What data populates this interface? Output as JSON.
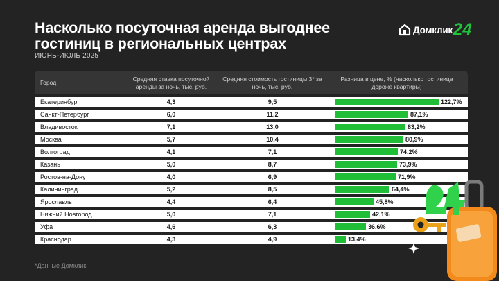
{
  "title": "Насколько посуточная аренда выгоднее гостиниц в региональных центрах",
  "subtitle": "ИЮНЬ-ИЮЛЬ 2025",
  "logo": {
    "text": "Домклик",
    "badge": "24",
    "brand_color": "#21c33a"
  },
  "footnote": "*Данные Домклик",
  "table": {
    "headers": {
      "city": "Город",
      "rent": "Средняя ставка посуточной аренды за ночь, тыс. руб.",
      "hotel": "Средняя стоимость гостиницы 3* за ночь, тыс. руб.",
      "diff": "Разница в цене, % (насколько гостиница дороже квартиры)"
    }
  },
  "chart_data": {
    "type": "table",
    "title": "Насколько посуточная аренда выгоднее гостиниц в региональных центрах",
    "subtitle": "ИЮНЬ-ИЮЛЬ 2025",
    "columns": [
      "Город",
      "Средняя ставка посуточной аренды за ночь, тыс. руб.",
      "Средняя стоимость гостиницы 3* за ночь, тыс. руб.",
      "Разница в цене, % (насколько гостиница дороже квартиры)"
    ],
    "bar_max": 122.7,
    "rows": [
      {
        "city": "Екатеринбург",
        "rent": "4,3",
        "hotel": "9,5",
        "diff": 122.7,
        "diff_label": "122,7%"
      },
      {
        "city": "Санкт-Петербург",
        "rent": "6,0",
        "hotel": "11,2",
        "diff": 87.1,
        "diff_label": "87,1%"
      },
      {
        "city": "Владивосток",
        "rent": "7,1",
        "hotel": "13,0",
        "diff": 83.2,
        "diff_label": "83,2%"
      },
      {
        "city": "Москва",
        "rent": "5,7",
        "hotel": "10,4",
        "diff": 80.9,
        "diff_label": "80,9%"
      },
      {
        "city": "Волгоград",
        "rent": "4,1",
        "hotel": "7,1",
        "diff": 74.2,
        "diff_label": "74,2%"
      },
      {
        "city": "Казань",
        "rent": "5,0",
        "hotel": "8,7",
        "diff": 73.9,
        "diff_label": "73,9%"
      },
      {
        "city": "Ростов-на-Дону",
        "rent": "4,0",
        "hotel": "6,9",
        "diff": 71.9,
        "diff_label": "71,9%"
      },
      {
        "city": "Калининград",
        "rent": "5,2",
        "hotel": "8,5",
        "diff": 64.4,
        "diff_label": "64,4%"
      },
      {
        "city": "Ярославль",
        "rent": "4,4",
        "hotel": "6,4",
        "diff": 45.8,
        "diff_label": "45,8%"
      },
      {
        "city": "Нижний Новгород",
        "rent": "5,0",
        "hotel": "7,1",
        "diff": 42.1,
        "diff_label": "42,1%"
      },
      {
        "city": "Уфа",
        "rent": "4,6",
        "hotel": "6,3",
        "diff": 36.6,
        "diff_label": "36,6%"
      },
      {
        "city": "Краснодар",
        "rent": "4,3",
        "hotel": "4,9",
        "diff": 13.4,
        "diff_label": "13,4%"
      }
    ]
  }
}
